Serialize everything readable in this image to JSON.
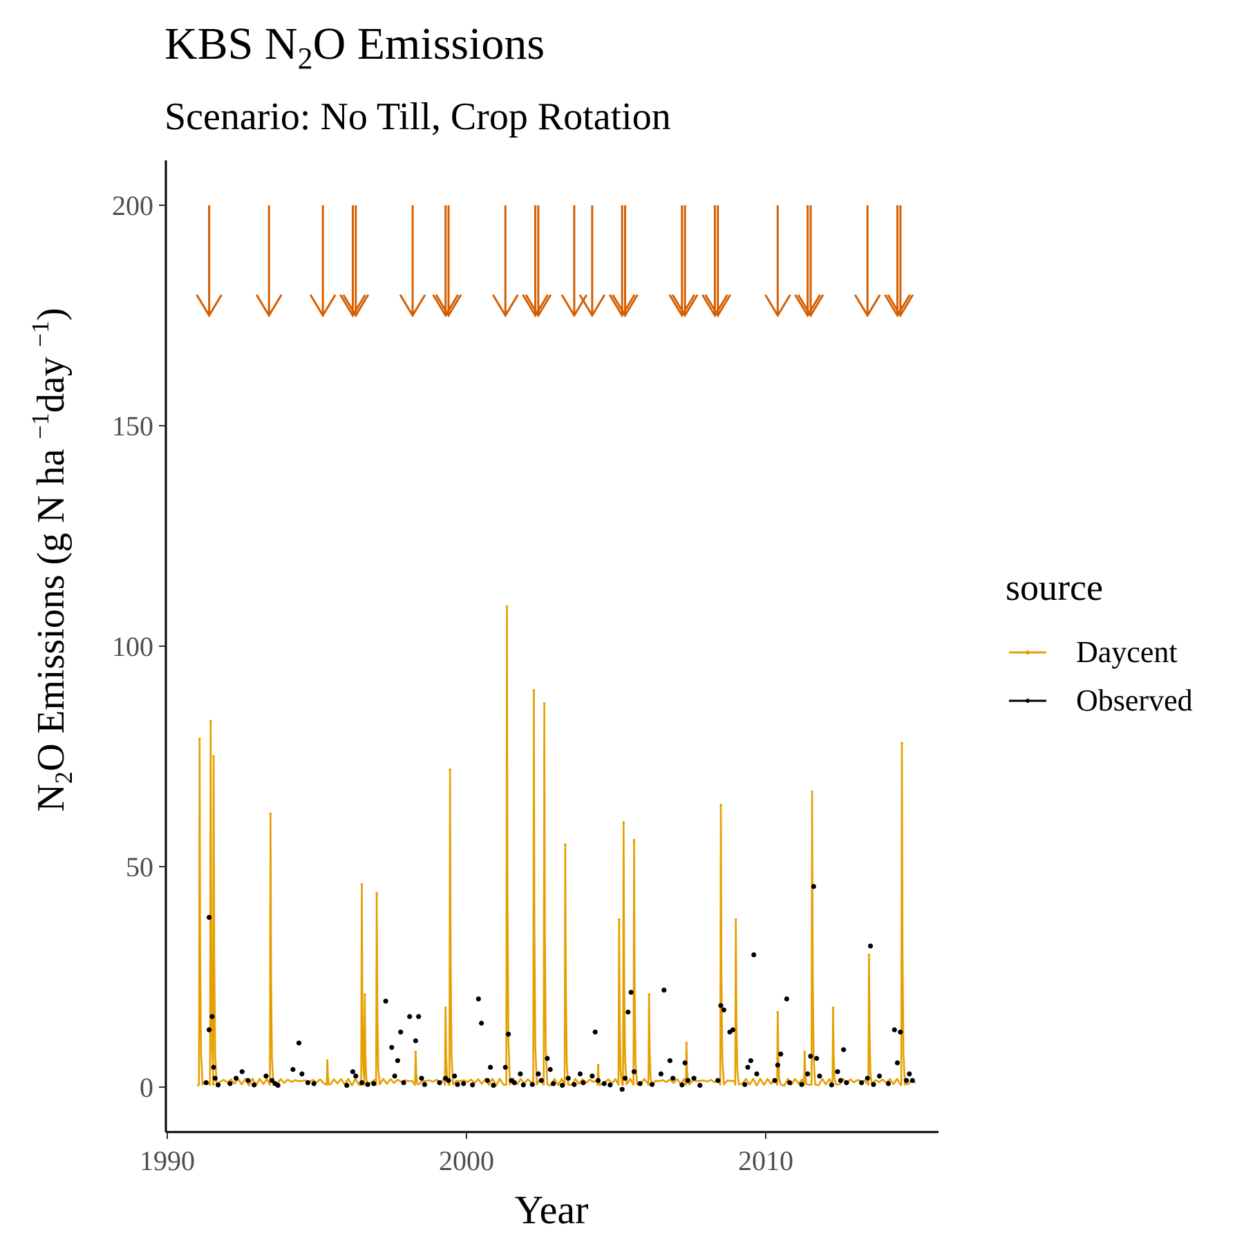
{
  "chart_data": {
    "type": "line",
    "title_main": "KBS N",
    "title_sub": "2",
    "title_tail": "O Emissions",
    "subtitle": "Scenario: No Till, Crop Rotation",
    "xlabel": "Year",
    "ylabel_parts": {
      "a": "N",
      "a_sub": "2",
      "b": "O Emissions (g N ha ",
      "b_sup": "−1",
      "c": "day ",
      "c_sup": "−1",
      "d": ")"
    },
    "xlim": [
      1990,
      2015.5
    ],
    "ylim": [
      -10,
      210
    ],
    "x_ticks": [
      1990,
      2000,
      2010
    ],
    "y_ticks": [
      0,
      50,
      100,
      150,
      200
    ],
    "x_tick_labels": [
      "1990",
      "2000",
      "2010"
    ],
    "y_tick_labels": [
      "0",
      "50",
      "100",
      "150",
      "200"
    ],
    "legend": {
      "title": "source",
      "position": "right",
      "entries": [
        {
          "label": "Daycent",
          "color": "#E69F00"
        },
        {
          "label": "Observed",
          "color": "#000000"
        }
      ]
    },
    "colors": {
      "daycent": "#E69F00",
      "observed": "#000000",
      "arrows": "#D55E00"
    },
    "arrow_range": [
      200,
      175
    ],
    "fertilizer_events": [
      1991.4,
      1993.4,
      1995.2,
      1996.2,
      1996.3,
      1998.2,
      1999.3,
      1999.4,
      2001.3,
      2002.3,
      2002.4,
      2003.6,
      2004.2,
      2005.2,
      2005.3,
      2007.2,
      2007.3,
      2008.3,
      2008.4,
      2010.4,
      2011.4,
      2011.5,
      2013.4,
      2014.4,
      2014.5
    ],
    "series": [
      {
        "name": "Daycent",
        "peaks": [
          [
            1991.08,
            79
          ],
          [
            1991.45,
            83
          ],
          [
            1991.55,
            75
          ],
          [
            1993.45,
            62
          ],
          [
            1995.35,
            6
          ],
          [
            1996.5,
            46
          ],
          [
            1996.6,
            21
          ],
          [
            1997.0,
            44
          ],
          [
            1998.3,
            8
          ],
          [
            1999.3,
            18
          ],
          [
            1999.45,
            72
          ],
          [
            2001.35,
            109
          ],
          [
            2002.25,
            90
          ],
          [
            2002.6,
            87
          ],
          [
            2003.3,
            55
          ],
          [
            2004.4,
            5
          ],
          [
            2005.1,
            38
          ],
          [
            2005.25,
            60
          ],
          [
            2005.6,
            56
          ],
          [
            2006.1,
            21
          ],
          [
            2007.35,
            10
          ],
          [
            2008.5,
            64
          ],
          [
            2009.0,
            38
          ],
          [
            2010.4,
            17
          ],
          [
            2011.3,
            8
          ],
          [
            2011.55,
            67
          ],
          [
            2012.25,
            18
          ],
          [
            2013.45,
            30
          ],
          [
            2014.55,
            78
          ]
        ]
      },
      {
        "name": "Observed",
        "points": [
          [
            1991.4,
            38.5
          ],
          [
            1991.4,
            13
          ],
          [
            1991.5,
            16
          ],
          [
            1991.55,
            4.5
          ],
          [
            1991.6,
            2
          ],
          [
            1991.3,
            1
          ],
          [
            1991.7,
            0.5
          ],
          [
            1992.1,
            0.8
          ],
          [
            1992.3,
            2
          ],
          [
            1992.5,
            3.5
          ],
          [
            1992.7,
            1.5
          ],
          [
            1992.9,
            0.5
          ],
          [
            1993.3,
            2.5
          ],
          [
            1993.5,
            1.5
          ],
          [
            1993.6,
            0.8
          ],
          [
            1993.7,
            0.4
          ],
          [
            1994.2,
            4
          ],
          [
            1994.4,
            10
          ],
          [
            1994.5,
            3
          ],
          [
            1994.7,
            1
          ],
          [
            1994.9,
            0.8
          ],
          [
            1996.0,
            0.4
          ],
          [
            1996.2,
            3.5
          ],
          [
            1996.3,
            2.5
          ],
          [
            1996.5,
            1
          ],
          [
            1996.7,
            0.6
          ],
          [
            1996.9,
            0.8
          ],
          [
            1997.3,
            19.5
          ],
          [
            1997.5,
            9
          ],
          [
            1997.6,
            2.5
          ],
          [
            1997.7,
            6
          ],
          [
            1997.8,
            12.5
          ],
          [
            1997.9,
            1
          ],
          [
            1998.1,
            16
          ],
          [
            1998.3,
            10.5
          ],
          [
            1998.4,
            16
          ],
          [
            1998.5,
            2
          ],
          [
            1998.6,
            0.6
          ],
          [
            1999.1,
            1
          ],
          [
            1999.3,
            2
          ],
          [
            1999.4,
            1.5
          ],
          [
            1999.6,
            2.5
          ],
          [
            1999.7,
            0.6
          ],
          [
            1999.9,
            0.8
          ],
          [
            2000.2,
            0.5
          ],
          [
            2000.4,
            20
          ],
          [
            2000.5,
            14.5
          ],
          [
            2000.7,
            1.5
          ],
          [
            2000.8,
            4.5
          ],
          [
            2000.9,
            0.4
          ],
          [
            2001.3,
            4.5
          ],
          [
            2001.4,
            12
          ],
          [
            2001.5,
            1.5
          ],
          [
            2001.6,
            1
          ],
          [
            2001.8,
            3
          ],
          [
            2001.9,
            0.5
          ],
          [
            2002.2,
            0.6
          ],
          [
            2002.4,
            3
          ],
          [
            2002.5,
            1.5
          ],
          [
            2002.7,
            6.5
          ],
          [
            2002.8,
            4
          ],
          [
            2002.9,
            0.8
          ],
          [
            2003.2,
            0.4
          ],
          [
            2003.4,
            2
          ],
          [
            2003.6,
            0.6
          ],
          [
            2003.8,
            3
          ],
          [
            2003.9,
            1
          ],
          [
            2004.2,
            2.5
          ],
          [
            2004.3,
            12.5
          ],
          [
            2004.4,
            1.5
          ],
          [
            2004.6,
            0.8
          ],
          [
            2004.8,
            0.5
          ],
          [
            2005.2,
            -0.5
          ],
          [
            2005.3,
            2
          ],
          [
            2005.4,
            17
          ],
          [
            2005.5,
            21.5
          ],
          [
            2005.6,
            3.5
          ],
          [
            2005.8,
            0.8
          ],
          [
            2006.2,
            0.6
          ],
          [
            2006.5,
            3
          ],
          [
            2006.6,
            22
          ],
          [
            2006.8,
            6
          ],
          [
            2006.9,
            2
          ],
          [
            2007.2,
            0.5
          ],
          [
            2007.3,
            5.5
          ],
          [
            2007.4,
            1.5
          ],
          [
            2007.6,
            2
          ],
          [
            2007.8,
            0.4
          ],
          [
            2008.4,
            1.5
          ],
          [
            2008.5,
            18.5
          ],
          [
            2008.6,
            17.5
          ],
          [
            2008.8,
            12.5
          ],
          [
            2008.9,
            13
          ],
          [
            2009.3,
            0.6
          ],
          [
            2009.4,
            4.5
          ],
          [
            2009.5,
            6
          ],
          [
            2009.6,
            30
          ],
          [
            2009.7,
            3
          ],
          [
            2010.3,
            1.5
          ],
          [
            2010.4,
            5
          ],
          [
            2010.5,
            7.5
          ],
          [
            2010.7,
            20
          ],
          [
            2010.8,
            1
          ],
          [
            2011.2,
            0.6
          ],
          [
            2011.4,
            3
          ],
          [
            2011.5,
            7
          ],
          [
            2011.6,
            45.5
          ],
          [
            2011.7,
            6.5
          ],
          [
            2011.8,
            2.5
          ],
          [
            2012.2,
            0.5
          ],
          [
            2012.4,
            3.5
          ],
          [
            2012.5,
            1.5
          ],
          [
            2012.6,
            8.5
          ],
          [
            2012.7,
            1
          ],
          [
            2013.2,
            1
          ],
          [
            2013.4,
            2
          ],
          [
            2013.5,
            32
          ],
          [
            2013.6,
            0.6
          ],
          [
            2013.8,
            2.5
          ],
          [
            2014.1,
            0.8
          ],
          [
            2014.3,
            13
          ],
          [
            2014.4,
            5.5
          ],
          [
            2014.5,
            12.5
          ],
          [
            2014.7,
            1.5
          ],
          [
            2014.8,
            3
          ],
          [
            2014.9,
            1.5
          ]
        ]
      }
    ]
  }
}
